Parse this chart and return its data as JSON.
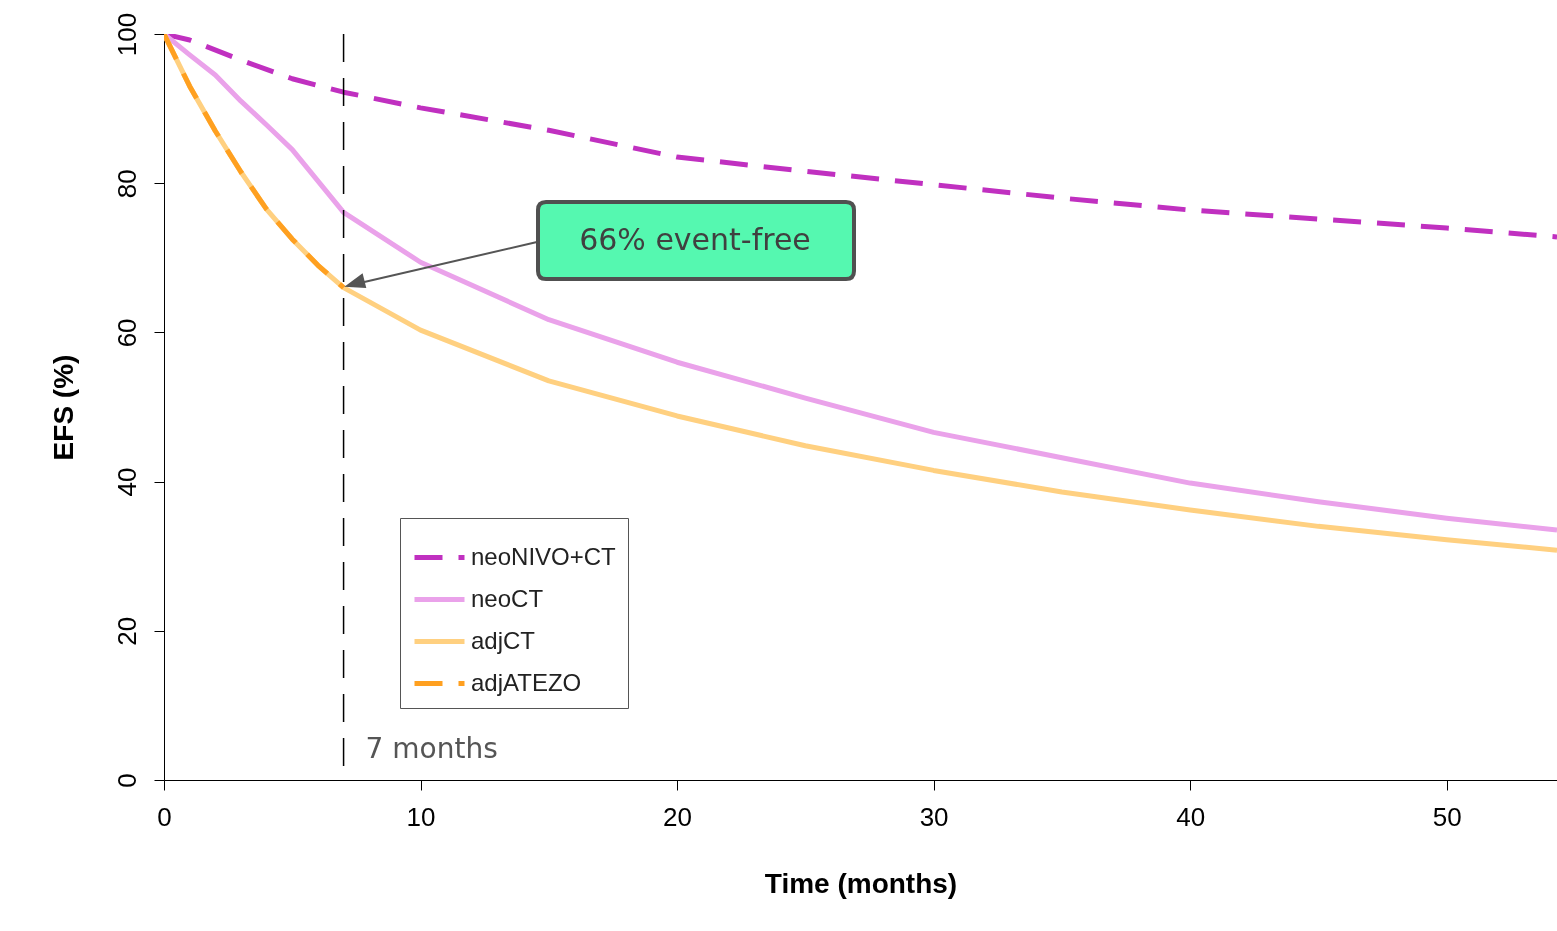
{
  "chart_data": {
    "type": "line",
    "xlabel": "Time (months)",
    "ylabel": "EFS (%)",
    "xlim": [
      0,
      54.3
    ],
    "ylim": [
      0,
      100
    ],
    "xticks": [
      0,
      10,
      20,
      30,
      40,
      50
    ],
    "yticks": [
      0,
      20,
      40,
      60,
      80,
      100
    ],
    "grid": false,
    "legend": "bottom left",
    "marker": "none",
    "series": [
      {
        "name": "neoNIVO+CT",
        "color": "#c030c0",
        "line_style": "dashed",
        "x": [
          0,
          1,
          3,
          5,
          7,
          10,
          15,
          20,
          25,
          30,
          35,
          40,
          45,
          50,
          54.3
        ],
        "values": [
          100,
          99.2,
          96.5,
          94,
          92.2,
          90.1,
          87.1,
          83.5,
          81.6,
          79.8,
          78,
          76.4,
          75.2,
          74,
          72.8
        ]
      },
      {
        "name": "neoCT",
        "color": "#eaa2ea",
        "line_style": "solid",
        "x": [
          0,
          1,
          2,
          3,
          4,
          5,
          7,
          10,
          15,
          20,
          25,
          30,
          35,
          40,
          45,
          50,
          54.3
        ],
        "values": [
          100,
          97.2,
          94.5,
          91,
          87.8,
          84.5,
          76.1,
          69.4,
          61.7,
          56,
          51.2,
          46.6,
          43.2,
          39.8,
          37.3,
          35.1,
          33.5
        ]
      },
      {
        "name": "adjCT",
        "color": "#ffd080",
        "line_style": "solid",
        "x": [
          0,
          1,
          2,
          3,
          4,
          5,
          6,
          7,
          10,
          15,
          20,
          25,
          30,
          35,
          40,
          45,
          50,
          54.3
        ],
        "values": [
          100,
          93,
          87,
          81.5,
          76.5,
          72.5,
          69,
          66,
          60.3,
          53.5,
          48.8,
          44.8,
          41.5,
          38.6,
          36.2,
          34,
          32.2,
          30.8
        ]
      },
      {
        "name": "adjATEZO",
        "color": "#ffa020",
        "line_style": "dashed",
        "x": [
          0,
          1,
          2,
          3,
          4,
          5,
          6,
          7
        ],
        "values": [
          100,
          93,
          87,
          81.5,
          76.5,
          72.5,
          69,
          66
        ]
      }
    ],
    "ref_lines": [
      {
        "axis": "x",
        "value": 7,
        "label": "7 months",
        "color": "#000000",
        "line_style": "dashed"
      }
    ],
    "annotations": [
      "66% event-free"
    ]
  }
}
